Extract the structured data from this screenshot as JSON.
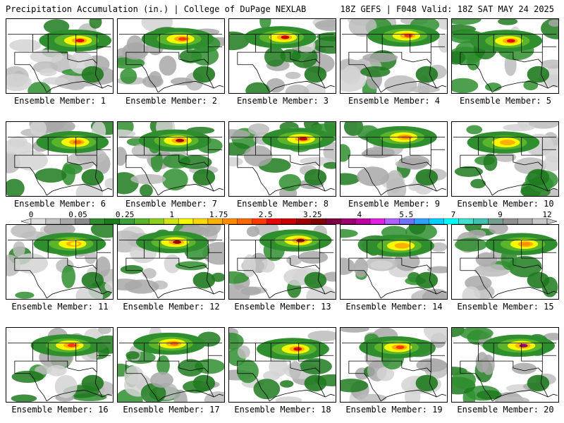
{
  "header": {
    "left": "Precipitation Accumulation (in.) | College of DuPage NEXLAB",
    "right": "18Z GEFS | F048 Valid: 18Z SAT MAY 24 2025"
  },
  "colorbar": {
    "tick_labels": [
      "0",
      "0.05",
      "0.25",
      "1",
      "1.75",
      "2.5",
      "3.25",
      "4",
      "5.5",
      "7",
      "9",
      "12"
    ],
    "colors": [
      "#e0e0e0",
      "#c4c4c4",
      "#a8a8a8",
      "#8c8c8c",
      "#2f8f2f",
      "#1f7a1f",
      "#3aa13a",
      "#5ab52a",
      "#8ccf1e",
      "#cfe614",
      "#f7f700",
      "#ffd700",
      "#ffb000",
      "#ff8c00",
      "#ff6a00",
      "#ff3800",
      "#e60000",
      "#c80000",
      "#a00000",
      "#800000",
      "#7a0040",
      "#9a0070",
      "#c000a0",
      "#e020e0",
      "#b060ff",
      "#7070ff",
      "#30a0ff",
      "#00d0ff",
      "#00ffff",
      "#40e0d0",
      "#40c0b0",
      "#70a090",
      "#909090",
      "#a8a8a8",
      "#c8c8c8"
    ]
  },
  "members": [
    {
      "label": "Ensemble Member: 1",
      "max_color": "#e60000"
    },
    {
      "label": "Ensemble Member: 2",
      "max_color": "#ff3800"
    },
    {
      "label": "Ensemble Member: 3",
      "max_color": "#c80000"
    },
    {
      "label": "Ensemble Member: 4",
      "max_color": "#ff3800"
    },
    {
      "label": "Ensemble Member: 5",
      "max_color": "#e60000"
    },
    {
      "label": "Ensemble Member: 6",
      "max_color": "#ff6a00"
    },
    {
      "label": "Ensemble Member: 7",
      "max_color": "#a00000"
    },
    {
      "label": "Ensemble Member: 8",
      "max_color": "#c80000"
    },
    {
      "label": "Ensemble Member: 9",
      "max_color": "#ff8c00"
    },
    {
      "label": "Ensemble Member: 10",
      "max_color": "#ffb000"
    },
    {
      "label": "Ensemble Member: 11",
      "max_color": "#f7f700"
    },
    {
      "label": "Ensemble Member: 12",
      "max_color": "#a00000"
    },
    {
      "label": "Ensemble Member: 13",
      "max_color": "#a00000"
    },
    {
      "label": "Ensemble Member: 14",
      "max_color": "#ffb000"
    },
    {
      "label": "Ensemble Member: 15",
      "max_color": "#ff8c00"
    },
    {
      "label": "Ensemble Member: 16",
      "max_color": "#ff3800"
    },
    {
      "label": "Ensemble Member: 17",
      "max_color": "#ff6a00"
    },
    {
      "label": "Ensemble Member: 18",
      "max_color": "#e60000"
    },
    {
      "label": "Ensemble Member: 19",
      "max_color": "#ff3800"
    },
    {
      "label": "Ensemble Member: 20",
      "max_color": "#9a0070"
    }
  ]
}
